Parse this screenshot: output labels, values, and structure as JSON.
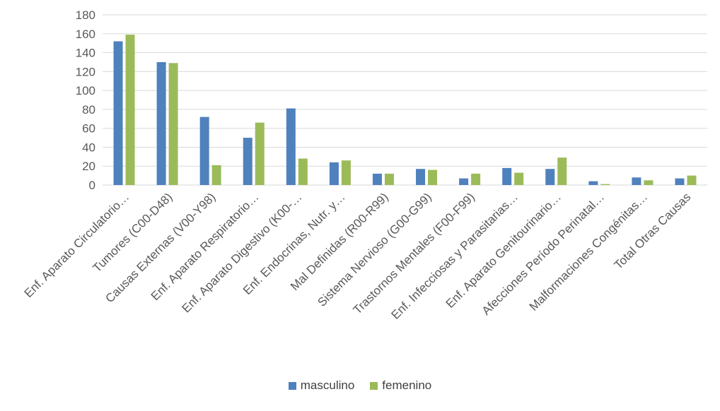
{
  "chart_data": {
    "type": "bar",
    "title": "",
    "xlabel": "",
    "ylabel": "",
    "ylim": [
      0,
      180
    ],
    "yticks": [
      0,
      20,
      40,
      60,
      80,
      100,
      120,
      140,
      160,
      180
    ],
    "grid": true,
    "legend_position": "bottom",
    "categories": [
      "Enf. Aparato Circulatorio…",
      "Tumores (C00-D48)",
      "Causas Externas (V00-Y98)",
      "Enf. Aparato Respiratorio…",
      "Enf. Aparato Digestivo (K00-…",
      "Enf. Endocrinas, Nutr. y…",
      "Mal Definidas (R00-R99)",
      "Sistema Nervioso (G00-G99)",
      "Trastornos Mentales (F00-F99)",
      "Enf. Infecciosas y Parasitarias…",
      "Enf. Aparato Genitourinario…",
      "Afecciones Período Perinatal…",
      "Malformaciones Congénitas…",
      "Total Otras Causas"
    ],
    "series": [
      {
        "name": "masculino",
        "color": "#4f81bd",
        "values": [
          152,
          130,
          72,
          50,
          81,
          24,
          12,
          17,
          7,
          18,
          17,
          4,
          8,
          7
        ]
      },
      {
        "name": "femenino",
        "color": "#9bbb59",
        "values": [
          159,
          129,
          21,
          66,
          28,
          26,
          12,
          16,
          12,
          13,
          29,
          1,
          5,
          10
        ]
      }
    ]
  }
}
